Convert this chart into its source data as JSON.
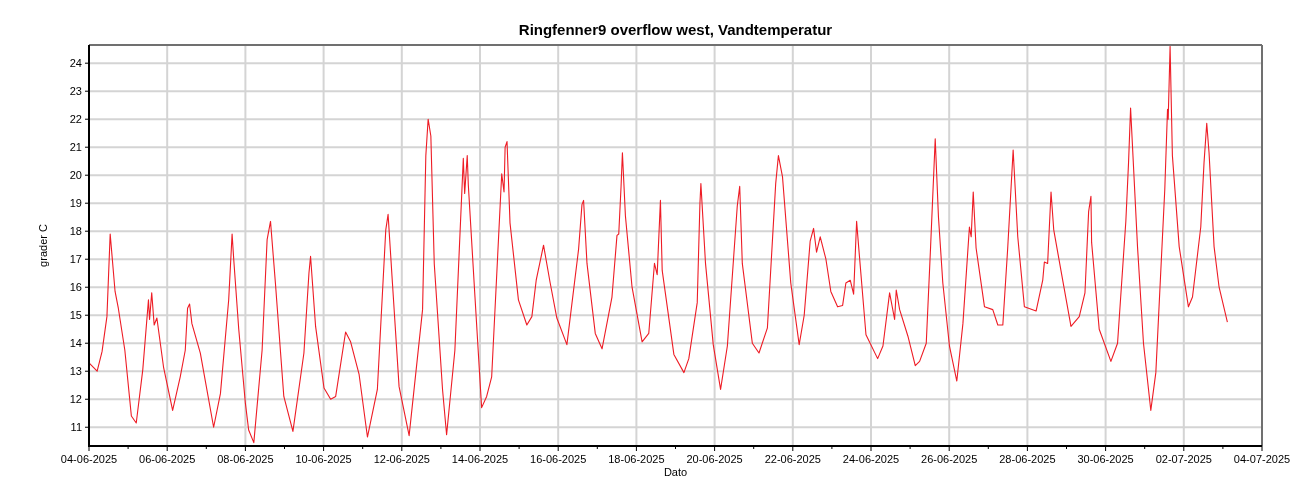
{
  "chart_data": {
    "type": "line",
    "title": "Ringfenner9 overflow west, Vandtemperatur",
    "xlabel": "Dato",
    "ylabel": "grader C",
    "xlim": [
      "2025-06-04",
      "2025-07-04"
    ],
    "xticks": [
      {
        "value": "2025-06-04",
        "label": "04-06-2025"
      },
      {
        "value": "2025-06-05",
        "label": null
      },
      {
        "value": "2025-06-06",
        "label": "06-06-2025"
      },
      {
        "value": "2025-06-07",
        "label": null
      },
      {
        "value": "2025-06-08",
        "label": "08-06-2025"
      },
      {
        "value": "2025-06-09",
        "label": null
      },
      {
        "value": "2025-06-10",
        "label": "10-06-2025"
      },
      {
        "value": "2025-06-11",
        "label": null
      },
      {
        "value": "2025-06-12",
        "label": "12-06-2025"
      },
      {
        "value": "2025-06-13",
        "label": null
      },
      {
        "value": "2025-06-14",
        "label": "14-06-2025"
      },
      {
        "value": "2025-06-15",
        "label": null
      },
      {
        "value": "2025-06-16",
        "label": "16-06-2025"
      },
      {
        "value": "2025-06-17",
        "label": null
      },
      {
        "value": "2025-06-18",
        "label": "18-06-2025"
      },
      {
        "value": "2025-06-19",
        "label": null
      },
      {
        "value": "2025-06-20",
        "label": "20-06-2025"
      },
      {
        "value": "2025-06-21",
        "label": null
      },
      {
        "value": "2025-06-22",
        "label": "22-06-2025"
      },
      {
        "value": "2025-06-23",
        "label": null
      },
      {
        "value": "2025-06-24",
        "label": "24-06-2025"
      },
      {
        "value": "2025-06-25",
        "label": null
      },
      {
        "value": "2025-06-26",
        "label": "26-06-2025"
      },
      {
        "value": "2025-06-27",
        "label": null
      },
      {
        "value": "2025-06-28",
        "label": "28-06-2025"
      },
      {
        "value": "2025-06-29",
        "label": null
      },
      {
        "value": "2025-06-30",
        "label": "30-06-2025"
      },
      {
        "value": "2025-07-01",
        "label": null
      },
      {
        "value": "2025-07-02",
        "label": "02-07-2025"
      },
      {
        "value": "2025-07-03",
        "label": null
      },
      {
        "value": "2025-07-04",
        "label": "04-07-2025"
      }
    ],
    "ylim": [
      10.33,
      24.65
    ],
    "yticks": [
      11,
      12,
      13,
      14,
      15,
      16,
      17,
      18,
      19,
      20,
      21,
      22,
      23,
      24
    ],
    "grid": true,
    "series": [
      {
        "color": "#ee1c25",
        "x": [
          "2025-06-04T00:00",
          "2025-06-04T05:00",
          "2025-06-04T08:00",
          "2025-06-04T11:00",
          "2025-06-04T13:00",
          "2025-06-04T16:00",
          "2025-06-04T18:00",
          "2025-06-04T22:00",
          "2025-06-05T02:00",
          "2025-06-05T05:00",
          "2025-06-05T09:00",
          "2025-06-05T12:30",
          "2025-06-05T13:10",
          "2025-06-05T14:30",
          "2025-06-05T16:00",
          "2025-06-05T17:40",
          "2025-06-05T21:45",
          "2025-06-06T03:20",
          "2025-06-06T08:00",
          "2025-06-06T11:05",
          "2025-06-06T12:30",
          "2025-06-06T13:45",
          "2025-06-06T15:10",
          "2025-06-06T20:20",
          "2025-06-07T04:30",
          "2025-06-07T08:40",
          "2025-06-07T13:45",
          "2025-06-07T15:50",
          "2025-06-07T16:50",
          "2025-06-07T19:55",
          "2025-06-08T00:00",
          "2025-06-08T02:00",
          "2025-06-08T05:10",
          "2025-06-08T10:15",
          "2025-06-08T13:20",
          "2025-06-08T15:25",
          "2025-06-08T18:25",
          "2025-06-08T23:35",
          "2025-06-09T05:10",
          "2025-06-09T11:55",
          "2025-06-09T15:00",
          "2025-06-09T16:00",
          "2025-06-09T19:05",
          "2025-06-10T00:15",
          "2025-06-10T04:20",
          "2025-06-10T07:25",
          "2025-06-10T13:30",
          "2025-06-10T16:35",
          "2025-06-10T21:45",
          "2025-06-11T02:55",
          "2025-06-11T09:00",
          "2025-06-11T14:10",
          "2025-06-11T15:35",
          "2025-06-11T18:15",
          "2025-06-11T22:20",
          "2025-06-12T04:30",
          "2025-06-12T12:45",
          "2025-06-12T14:45",
          "2025-06-12T16:10",
          "2025-06-12T17:50",
          "2025-06-12T19:55",
          "2025-06-13T01:00",
          "2025-06-13T03:30",
          "2025-06-13T08:35",
          "2025-06-13T13:45",
          "2025-06-13T14:35",
          "2025-06-13T16:10",
          "2025-06-13T16:50",
          "2025-06-13T20:55",
          "2025-06-14T01:00",
          "2025-06-14T04:05",
          "2025-06-14T07:10",
          "2025-06-14T13:20",
          "2025-06-14T14:45",
          "2025-06-14T15:25",
          "2025-06-14T16:35",
          "2025-06-14T18:25",
          "2025-06-14T23:35",
          "2025-06-15T04:45",
          "2025-06-15T07:50",
          "2025-06-15T10:30",
          "2025-06-15T15:00",
          "2025-06-15T19:05",
          "2025-06-15T23:10",
          "2025-06-16T05:20",
          "2025-06-16T12:30",
          "2025-06-16T14:35",
          "2025-06-16T15:35",
          "2025-06-16T17:40",
          "2025-06-16T22:45",
          "2025-06-17T02:55",
          "2025-06-17T09:00",
          "2025-06-17T12:05",
          "2025-06-17T13:10",
          "2025-06-17T14:35",
          "2025-06-17T15:25",
          "2025-06-17T17:15",
          "2025-06-17T21:20",
          "2025-06-18T03:30",
          "2025-06-18T07:35",
          "2025-06-18T11:05",
          "2025-06-18T12:45",
          "2025-06-18T14:45",
          "2025-06-18T15:50",
          "2025-06-18T23:00",
          "2025-06-19T05:10",
          "2025-06-19T08:10",
          "2025-06-19T13:20",
          "2025-06-19T15:00",
          "2025-06-19T15:35",
          "2025-06-19T18:25",
          "2025-06-19T23:10",
          "2025-06-20T03:40",
          "2025-06-20T07:50",
          "2025-06-20T13:55",
          "2025-06-20T15:25",
          "2025-06-20T17:00",
          "2025-06-20T23:10",
          "2025-06-21T03:15",
          "2025-06-21T08:25",
          "2025-06-21T13:30",
          "2025-06-21T15:10",
          "2025-06-21T17:40",
          "2025-06-21T22:45",
          "2025-06-22T03:55",
          "2025-06-22T07:00",
          "2025-06-22T10:40",
          "2025-06-22T12:45",
          "2025-06-22T14:35",
          "2025-06-22T16:50",
          "2025-06-22T20:20",
          "2025-06-22T23:20",
          "2025-06-23T03:30",
          "2025-06-23T06:35",
          "2025-06-23T08:35",
          "2025-06-23T11:15",
          "2025-06-23T13:20",
          "2025-06-23T15:10",
          "2025-06-23T16:25",
          "2025-06-23T20:55",
          "2025-06-24T04:05",
          "2025-06-24T07:20",
          "2025-06-24T11:25",
          "2025-06-24T14:30",
          "2025-06-24T15:30",
          "2025-06-24T17:35",
          "2025-06-24T22:40",
          "2025-06-25T03:10",
          "2025-06-25T05:50",
          "2025-06-25T09:55",
          "2025-06-25T12:35",
          "2025-06-25T15:25",
          "2025-06-25T17:25",
          "2025-06-25T20:05",
          "2025-06-26T00:10",
          "2025-06-26T04:40",
          "2025-06-26T08:25",
          "2025-06-26T12:25",
          "2025-06-26T13:30",
          "2025-06-26T14:45",
          "2025-06-26T16:30",
          "2025-06-26T21:40",
          "2025-06-27T02:45",
          "2025-06-27T05:50",
          "2025-06-27T08:55",
          "2025-06-27T11:55",
          "2025-06-27T15:15",
          "2025-06-27T18:05",
          "2025-06-27T22:10",
          "2025-06-28T05:20",
          "2025-06-28T09:25",
          "2025-06-28T10:25",
          "2025-06-28T12:25",
          "2025-06-28T14:30",
          "2025-06-28T16:10",
          "2025-06-28T20:35",
          "2025-06-29T02:45",
          "2025-06-29T07:50",
          "2025-06-29T11:20",
          "2025-06-29T13:35",
          "2025-06-29T15:00",
          "2025-06-29T15:25",
          "2025-06-29T20:05",
          "2025-06-30T03:15",
          "2025-06-30T07:20",
          "2025-06-30T12:25",
          "2025-06-30T14:05",
          "2025-06-30T15:20",
          "2025-06-30T19:35",
          "2025-06-30T23:15",
          "2025-07-01T03:45",
          "2025-07-01T06:50",
          "2025-07-01T12:20",
          "2025-07-01T14:00",
          "2025-07-01T14:25",
          "2025-07-01T15:35",
          "2025-07-01T17:00",
          "2025-07-01T21:10",
          "2025-07-02T02:50",
          "2025-07-02T05:20",
          "2025-07-02T10:25",
          "2025-07-02T12:25",
          "2025-07-02T14:05",
          "2025-07-02T15:30",
          "2025-07-02T18:35",
          "2025-07-02T21:40",
          "2025-07-03T02:45"
        ],
        "values": [
          13.3,
          13.0,
          13.7,
          14.95,
          17.9,
          15.85,
          15.25,
          13.75,
          11.4,
          11.15,
          13.05,
          15.55,
          14.85,
          15.8,
          14.65,
          14.9,
          13.15,
          11.6,
          12.8,
          13.75,
          15.25,
          15.4,
          14.7,
          13.65,
          11.0,
          12.2,
          15.55,
          17.9,
          17.0,
          14.5,
          11.85,
          10.9,
          10.45,
          13.75,
          17.7,
          18.35,
          16.15,
          12.1,
          10.85,
          13.65,
          16.5,
          17.1,
          14.6,
          12.4,
          12.0,
          12.1,
          14.4,
          14.05,
          12.9,
          10.65,
          12.35,
          18.05,
          18.6,
          16.15,
          12.45,
          10.7,
          15.2,
          20.7,
          22.0,
          21.4,
          16.85,
          12.35,
          10.73,
          13.75,
          20.6,
          19.35,
          20.7,
          19.65,
          15.65,
          11.7,
          12.1,
          12.8,
          20.05,
          19.4,
          21.0,
          21.2,
          18.3,
          15.55,
          14.65,
          14.95,
          16.25,
          17.5,
          16.15,
          14.9,
          13.95,
          17.35,
          18.95,
          19.1,
          16.85,
          14.35,
          13.8,
          15.65,
          17.85,
          17.9,
          19.6,
          20.8,
          18.55,
          16.0,
          14.05,
          14.35,
          16.85,
          16.45,
          19.1,
          16.6,
          13.6,
          12.95,
          13.45,
          15.45,
          19.0,
          19.7,
          16.85,
          13.95,
          12.35,
          13.9,
          18.9,
          19.6,
          16.85,
          14.0,
          13.65,
          14.55,
          19.7,
          20.7,
          19.95,
          16.15,
          13.95,
          15.0,
          17.65,
          18.1,
          17.25,
          17.8,
          17.0,
          15.85,
          15.3,
          15.35,
          16.15,
          16.25,
          15.75,
          18.35,
          17.45,
          14.3,
          13.45,
          13.9,
          15.8,
          14.85,
          15.9,
          15.2,
          14.25,
          13.2,
          13.35,
          14.0,
          17.45,
          21.3,
          18.5,
          16.15,
          13.9,
          12.65,
          14.7,
          18.15,
          17.8,
          19.4,
          17.4,
          15.3,
          15.2,
          14.65,
          14.65,
          17.4,
          20.9,
          17.8,
          15.3,
          15.15,
          16.25,
          16.9,
          16.85,
          19.4,
          18.05,
          16.6,
          14.6,
          14.95,
          15.8,
          18.7,
          19.25,
          17.6,
          14.5,
          13.35,
          14.0,
          18.35,
          20.45,
          22.4,
          17.45,
          14.0,
          11.6,
          12.95,
          19.5,
          22.35,
          22.0,
          24.6,
          20.7,
          17.45,
          15.3,
          15.65,
          18.15,
          20.45,
          21.85,
          20.8,
          17.45,
          16.0,
          14.75
        ]
      }
    ]
  }
}
